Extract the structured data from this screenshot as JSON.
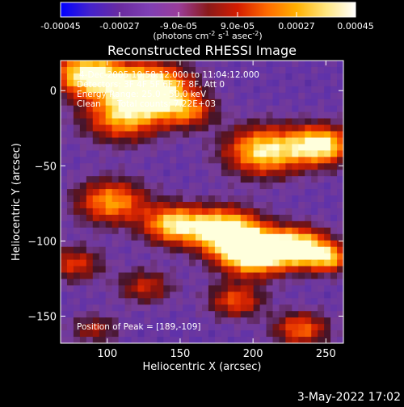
{
  "colorbar": {
    "ticks": [
      "-0.00045",
      "-0.00027",
      "-9.0e-05",
      "9.0e-05",
      "0.00027",
      "0.00045"
    ],
    "range": [
      -0.00045,
      0.00045
    ],
    "units_main": "(photons cm",
    "units_exp1": "-2",
    "units_mid": " s",
    "units_exp2": "-1",
    "units_mid2": " asec",
    "units_exp3": "-2",
    "units_end": ")",
    "colors": [
      "#0000ff",
      "#4422cc",
      "#6a2ba0",
      "#7f3fb4",
      "#9a3d9a",
      "#8a1a1a",
      "#d41c00",
      "#ff6a00",
      "#ffb000",
      "#ffe680",
      "#ffffff"
    ]
  },
  "chart_data": {
    "type": "heatmap",
    "title": "Reconstructed RHESSI Image",
    "xlabel": "Heliocentric X (arcsec)",
    "ylabel": "Heliocentric Y (arcsec)",
    "xlim": [
      68,
      262
    ],
    "ylim": [
      -168,
      20
    ],
    "xticks": [
      "100",
      "150",
      "200",
      "250"
    ],
    "xtick_values": [
      100,
      150,
      200,
      250
    ],
    "yticks": [
      "0",
      "−50",
      "−100",
      "−150"
    ],
    "ytick_values": [
      0,
      -50,
      -100,
      -150
    ],
    "peak": [
      189,
      -109
    ],
    "annotations": {
      "time": "4-Dec-2005 10:58:12.000 to 11:04:12.000",
      "detectors": "Detectors: 3F 4F 5F 6F 7F 8F, Att 0",
      "energy": "Energy Range: 25.0 - 50.0 keV",
      "clean": "Clean",
      "counts": "Total counts: 7.22E+03",
      "peak_text": "Position of Peak = [189,-109]"
    }
  },
  "footer": {
    "date": "3-May-2022 17:02"
  }
}
